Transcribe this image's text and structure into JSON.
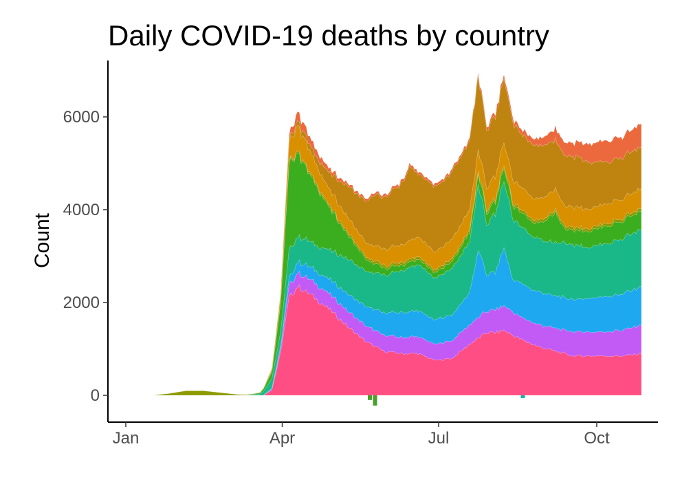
{
  "chart_data": {
    "type": "area",
    "stacked": true,
    "title": "Daily COVID-19 deaths by country",
    "xlabel": "",
    "ylabel": "Count",
    "x_ticks": [
      {
        "label": "Jan",
        "day": 0
      },
      {
        "label": "Apr",
        "day": 91
      },
      {
        "label": "Jul",
        "day": 182
      },
      {
        "label": "Oct",
        "day": 274
      }
    ],
    "y_ticks": [
      0,
      2000,
      4000,
      6000
    ],
    "xlim": [
      "2020-01-01",
      "2020-10-27"
    ],
    "ylim": [
      -250,
      7200
    ],
    "legend": "none",
    "grid": false,
    "negative_spikes": [
      {
        "day": 142,
        "value": -100,
        "color": "#49a02a"
      },
      {
        "day": 145,
        "value": -220,
        "color": "#49a02a"
      },
      {
        "day": 231,
        "value": -60,
        "color": "#17b3a6"
      }
    ],
    "series": [
      {
        "name": "",
        "color": "#fe4e83",
        "values": [
          [
            0,
            0
          ],
          [
            80,
            0
          ],
          [
            85,
            120
          ],
          [
            90,
            900
          ],
          [
            95,
            2100
          ],
          [
            100,
            2350
          ],
          [
            110,
            2100
          ],
          [
            120,
            1800
          ],
          [
            130,
            1450
          ],
          [
            140,
            1150
          ],
          [
            150,
            950
          ],
          [
            160,
            900
          ],
          [
            170,
            900
          ],
          [
            180,
            750
          ],
          [
            190,
            800
          ],
          [
            200,
            1100
          ],
          [
            210,
            1350
          ],
          [
            215,
            1350
          ],
          [
            220,
            1400
          ],
          [
            230,
            1200
          ],
          [
            240,
            1050
          ],
          [
            250,
            950
          ],
          [
            260,
            850
          ],
          [
            270,
            850
          ],
          [
            280,
            850
          ],
          [
            290,
            850
          ],
          [
            300,
            900
          ]
        ]
      },
      {
        "name": "",
        "color": "#c25bf5",
        "values": [
          [
            0,
            0
          ],
          [
            80,
            0
          ],
          [
            85,
            10
          ],
          [
            90,
            80
          ],
          [
            95,
            250
          ],
          [
            100,
            300
          ],
          [
            110,
            320
          ],
          [
            120,
            330
          ],
          [
            130,
            340
          ],
          [
            140,
            340
          ],
          [
            150,
            350
          ],
          [
            160,
            350
          ],
          [
            170,
            360
          ],
          [
            180,
            350
          ],
          [
            190,
            380
          ],
          [
            200,
            420
          ],
          [
            210,
            470
          ],
          [
            220,
            520
          ],
          [
            230,
            480
          ],
          [
            240,
            470
          ],
          [
            250,
            500
          ],
          [
            260,
            520
          ],
          [
            270,
            520
          ],
          [
            280,
            520
          ],
          [
            290,
            560
          ],
          [
            300,
            620
          ]
        ]
      },
      {
        "name": "",
        "color": "#1da8f0",
        "values": [
          [
            0,
            0
          ],
          [
            80,
            0
          ],
          [
            90,
            60
          ],
          [
            100,
            240
          ],
          [
            110,
            280
          ],
          [
            120,
            320
          ],
          [
            130,
            380
          ],
          [
            140,
            420
          ],
          [
            150,
            480
          ],
          [
            160,
            530
          ],
          [
            170,
            560
          ],
          [
            180,
            520
          ],
          [
            190,
            560
          ],
          [
            200,
            680
          ],
          [
            205,
            1450
          ],
          [
            210,
            800
          ],
          [
            215,
            800
          ],
          [
            220,
            1250
          ],
          [
            225,
            700
          ],
          [
            230,
            720
          ],
          [
            240,
            700
          ],
          [
            250,
            700
          ],
          [
            260,
            700
          ],
          [
            270,
            720
          ],
          [
            280,
            760
          ],
          [
            290,
            780
          ],
          [
            300,
            820
          ]
        ]
      },
      {
        "name": "",
        "color": "#1ab889",
        "values": [
          [
            0,
            0
          ],
          [
            70,
            0
          ],
          [
            78,
            30
          ],
          [
            85,
            200
          ],
          [
            90,
            300
          ],
          [
            95,
            600
          ],
          [
            100,
            550
          ],
          [
            110,
            550
          ],
          [
            120,
            650
          ],
          [
            130,
            750
          ],
          [
            140,
            750
          ],
          [
            150,
            800
          ],
          [
            160,
            900
          ],
          [
            170,
            1000
          ],
          [
            180,
            900
          ],
          [
            190,
            1000
          ],
          [
            200,
            1100
          ],
          [
            205,
            1400
          ],
          [
            210,
            1100
          ],
          [
            220,
            1450
          ],
          [
            230,
            1200
          ],
          [
            240,
            1150
          ],
          [
            250,
            1150
          ],
          [
            260,
            1200
          ],
          [
            270,
            1100
          ],
          [
            280,
            1150
          ],
          [
            290,
            1200
          ],
          [
            300,
            1250
          ]
        ]
      },
      {
        "name": "",
        "color": "#3bae1f",
        "values": [
          [
            0,
            0
          ],
          [
            70,
            0
          ],
          [
            78,
            20
          ],
          [
            85,
            150
          ],
          [
            90,
            600
          ],
          [
            95,
            1900
          ],
          [
            100,
            1800
          ],
          [
            110,
            1300
          ],
          [
            120,
            850
          ],
          [
            130,
            500
          ],
          [
            140,
            250
          ],
          [
            150,
            150
          ],
          [
            160,
            120
          ],
          [
            170,
            110
          ],
          [
            180,
            120
          ],
          [
            190,
            150
          ],
          [
            200,
            200
          ],
          [
            210,
            250
          ],
          [
            220,
            280
          ],
          [
            240,
            320
          ],
          [
            250,
            650
          ],
          [
            255,
            300
          ],
          [
            270,
            350
          ],
          [
            280,
            380
          ],
          [
            290,
            380
          ],
          [
            300,
            400
          ]
        ]
      },
      {
        "name": "",
        "color": "#8d9a00",
        "values": [
          [
            0,
            0
          ],
          [
            15,
            0
          ],
          [
            25,
            40
          ],
          [
            35,
            100
          ],
          [
            45,
            100
          ],
          [
            55,
            60
          ],
          [
            65,
            20
          ],
          [
            75,
            10
          ],
          [
            90,
            20
          ],
          [
            100,
            40
          ],
          [
            120,
            50
          ],
          [
            150,
            60
          ],
          [
            180,
            60
          ],
          [
            200,
            60
          ],
          [
            230,
            60
          ],
          [
            260,
            60
          ],
          [
            300,
            60
          ]
        ]
      },
      {
        "name": "",
        "color": "#d89000",
        "values": [
          [
            0,
            0
          ],
          [
            80,
            0
          ],
          [
            85,
            40
          ],
          [
            90,
            150
          ],
          [
            95,
            420
          ],
          [
            100,
            550
          ],
          [
            110,
            420
          ],
          [
            120,
            330
          ],
          [
            130,
            320
          ],
          [
            140,
            300
          ],
          [
            150,
            350
          ],
          [
            160,
            380
          ],
          [
            170,
            420
          ],
          [
            180,
            380
          ],
          [
            190,
            420
          ],
          [
            200,
            440
          ],
          [
            210,
            480
          ],
          [
            220,
            500
          ],
          [
            230,
            480
          ],
          [
            240,
            460
          ],
          [
            250,
            440
          ],
          [
            260,
            440
          ],
          [
            270,
            420
          ],
          [
            280,
            420
          ],
          [
            290,
            420
          ],
          [
            300,
            420
          ]
        ]
      },
      {
        "name": "",
        "color": "#be840f",
        "values": [
          [
            0,
            0
          ],
          [
            80,
            0
          ],
          [
            90,
            20
          ],
          [
            95,
            60
          ],
          [
            100,
            100
          ],
          [
            110,
            150
          ],
          [
            120,
            400
          ],
          [
            130,
            700
          ],
          [
            140,
            900
          ],
          [
            145,
            1100
          ],
          [
            150,
            1100
          ],
          [
            160,
            1300
          ],
          [
            165,
            1600
          ],
          [
            170,
            1350
          ],
          [
            180,
            1400
          ],
          [
            190,
            1450
          ],
          [
            200,
            1500
          ],
          [
            205,
            1600
          ],
          [
            210,
            1250
          ],
          [
            220,
            1350
          ],
          [
            230,
            1150
          ],
          [
            240,
            1150
          ],
          [
            250,
            1050
          ],
          [
            260,
            1100
          ],
          [
            270,
            1000
          ],
          [
            280,
            900
          ],
          [
            290,
            900
          ],
          [
            300,
            900
          ]
        ]
      },
      {
        "name": "",
        "color": "#ec693e",
        "values": [
          [
            0,
            0
          ],
          [
            80,
            0
          ],
          [
            90,
            30
          ],
          [
            95,
            100
          ],
          [
            100,
            200
          ],
          [
            110,
            150
          ],
          [
            120,
            80
          ],
          [
            130,
            50
          ],
          [
            140,
            50
          ],
          [
            150,
            50
          ],
          [
            160,
            50
          ],
          [
            170,
            50
          ],
          [
            180,
            50
          ],
          [
            190,
            50
          ],
          [
            200,
            50
          ],
          [
            210,
            70
          ],
          [
            220,
            80
          ],
          [
            230,
            100
          ],
          [
            240,
            150
          ],
          [
            250,
            250
          ],
          [
            260,
            300
          ],
          [
            270,
            400
          ],
          [
            280,
            450
          ],
          [
            290,
            450
          ],
          [
            300,
            500
          ]
        ]
      }
    ]
  }
}
